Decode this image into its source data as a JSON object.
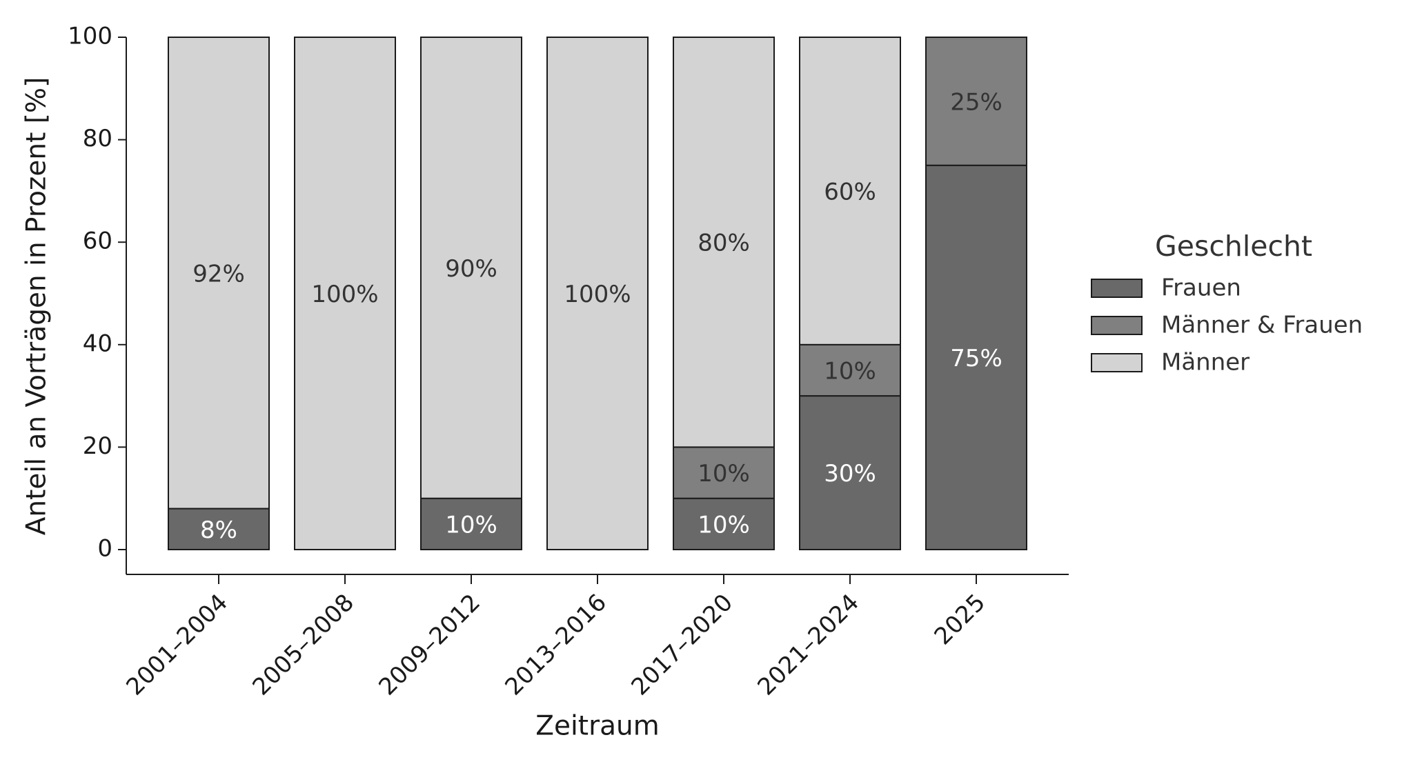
{
  "chart_data": {
    "type": "stacked_bar",
    "x_label": "Zeitraum",
    "y_label": "Anteil an Vorträgen in Prozent [%]",
    "categories": [
      "2001–2004",
      "2005–2008",
      "2009–2012",
      "2013–2016",
      "2017–2020",
      "2021–2024",
      "2025"
    ],
    "series": [
      {
        "name": "Frauen",
        "color": "#696969",
        "label_color": "#ffffff",
        "values": [
          8,
          0,
          10,
          0,
          10,
          30,
          75
        ],
        "value_labels": [
          "8%",
          null,
          "10%",
          null,
          "10%",
          "30%",
          "75%"
        ]
      },
      {
        "name": "Männer & Frauen",
        "color": "#808080",
        "label_color": "#333333",
        "values": [
          0,
          0,
          0,
          0,
          10,
          10,
          25
        ],
        "value_labels": [
          null,
          null,
          null,
          null,
          "10%",
          "10%",
          "25%"
        ]
      },
      {
        "name": "Männer",
        "color": "#d3d3d3",
        "label_color": "#333333",
        "values": [
          92,
          100,
          90,
          100,
          80,
          60,
          0
        ],
        "value_labels": [
          "92%",
          "100%",
          "90%",
          "100%",
          "80%",
          "60%",
          null
        ]
      }
    ],
    "ylim": [
      0,
      100
    ],
    "yticks": [
      0,
      20,
      40,
      60,
      80,
      100
    ],
    "legend_title": "Geschlecht",
    "legend_position": "right"
  }
}
